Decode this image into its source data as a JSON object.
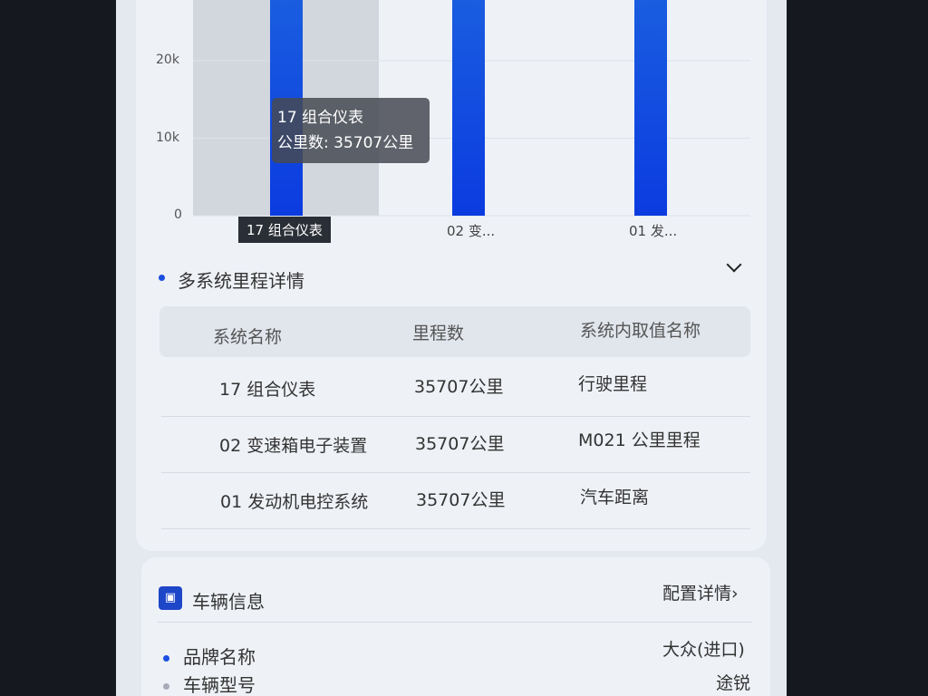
{
  "chart_data": {
    "type": "bar",
    "categories": [
      "17 组合仪表",
      "02 变...",
      "01 发..."
    ],
    "values": [
      35707,
      35707,
      35707
    ],
    "yticks": [
      "0",
      "10k",
      "20k"
    ],
    "ylim": [
      0,
      40000
    ],
    "bar_color": "#1a5de0",
    "tooltip": {
      "title": "17 组合仪表",
      "line": "公里数: 35707公里"
    },
    "selected_label": "17 组合仪表"
  },
  "mileage_section": {
    "title": "多系统里程详情",
    "columns": [
      "系统名称",
      "里程数",
      "系统内取值名称"
    ],
    "rows": [
      [
        "17 组合仪表",
        "35707公里",
        "行驶里程"
      ],
      [
        "02 变速箱电子装置",
        "35707公里",
        "M021 公里里程"
      ],
      [
        "01 发动机电控系统",
        "35707公里",
        "汽车距离"
      ]
    ]
  },
  "vehicle_info": {
    "title": "车辆信息",
    "detail_link": "配置详情",
    "items": [
      {
        "label": "品牌名称",
        "value": "大众(进口)"
      },
      {
        "label": "车辆型号",
        "value": "途锐"
      }
    ]
  }
}
